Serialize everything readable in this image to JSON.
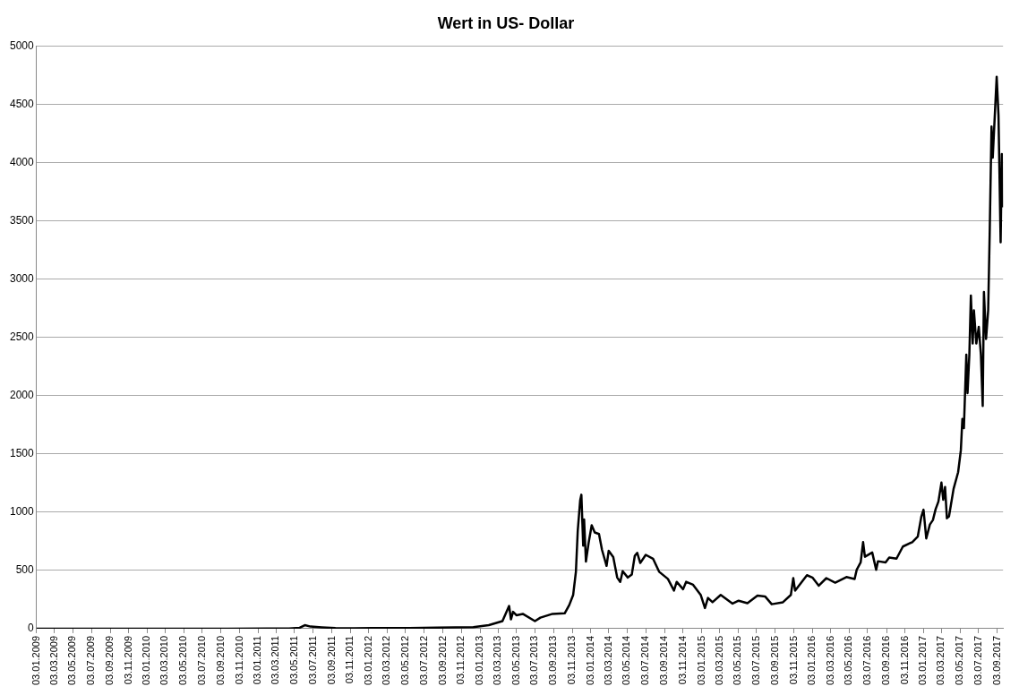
{
  "chart_data": {
    "type": "line",
    "title": "Wert in US- Dollar",
    "x": [
      "2009-01-03",
      "2009-07-01",
      "2010-01-01",
      "2010-07-17",
      "2011-02-01",
      "2011-04-15",
      "2011-05-20",
      "2011-06-06",
      "2011-06-25",
      "2011-08-01",
      "2011-09-15",
      "2011-11-15",
      "2012-01-15",
      "2012-03-15",
      "2012-05-15",
      "2012-08-15",
      "2012-10-15",
      "2012-12-12",
      "2013-02-01",
      "2013-03-18",
      "2013-04-09",
      "2013-04-15",
      "2013-04-22",
      "2013-05-03",
      "2013-05-24",
      "2013-07-03",
      "2013-07-21",
      "2013-08-30",
      "2013-10-09",
      "2013-10-24",
      "2013-11-06",
      "2013-11-15",
      "2013-11-21",
      "2013-11-29",
      "2013-12-03",
      "2013-12-09",
      "2013-12-12",
      "2013-12-18",
      "2013-12-27",
      "2014-01-06",
      "2014-01-16",
      "2014-01-30",
      "2014-02-09",
      "2014-02-24",
      "2014-03-03",
      "2014-03-18",
      "2014-03-31",
      "2014-04-10",
      "2014-04-18",
      "2014-05-05",
      "2014-05-18",
      "2014-05-28",
      "2014-06-05",
      "2014-06-15",
      "2014-07-03",
      "2014-07-27",
      "2014-08-16",
      "2014-09-14",
      "2014-10-04",
      "2014-10-13",
      "2014-11-03",
      "2014-11-13",
      "2014-12-06",
      "2014-12-31",
      "2015-01-14",
      "2015-01-24",
      "2015-02-08",
      "2015-03-07",
      "2015-04-15",
      "2015-05-05",
      "2015-06-03",
      "2015-07-06",
      "2015-07-31",
      "2015-08-22",
      "2015-09-28",
      "2015-10-24",
      "2015-11-01",
      "2015-11-07",
      "2015-12-16",
      "2016-01-03",
      "2016-01-24",
      "2016-02-18",
      "2016-03-18",
      "2016-04-24",
      "2016-05-21",
      "2016-05-28",
      "2016-06-10",
      "2016-06-18",
      "2016-06-24",
      "2016-07-18",
      "2016-07-31",
      "2016-08-06",
      "2016-08-31",
      "2016-09-12",
      "2016-10-06",
      "2016-10-27",
      "2016-11-27",
      "2016-12-15",
      "2016-12-27",
      "2017-01-03",
      "2017-01-12",
      "2017-01-24",
      "2017-02-03",
      "2017-02-12",
      "2017-02-21",
      "2017-03-03",
      "2017-03-09",
      "2017-03-15",
      "2017-03-21",
      "2017-03-28",
      "2017-04-12",
      "2017-04-27",
      "2017-05-06",
      "2017-05-11",
      "2017-05-16",
      "2017-05-24",
      "2017-05-28",
      "2017-06-03",
      "2017-06-08",
      "2017-06-14",
      "2017-06-18",
      "2017-06-26",
      "2017-07-04",
      "2017-07-11",
      "2017-07-17",
      "2017-07-21",
      "2017-07-28",
      "2017-08-04",
      "2017-08-09",
      "2017-08-15",
      "2017-08-19",
      "2017-09-01",
      "2017-09-07",
      "2017-09-14",
      "2017-09-18",
      "2017-09-21"
    ],
    "series": [
      {
        "color": "#000000",
        "values": [
          0,
          0,
          0,
          0,
          1,
          1,
          8,
          30,
          18,
          12,
          6,
          3,
          6,
          5,
          5,
          10,
          12,
          13,
          30,
          65,
          195,
          80,
          145,
          115,
          127,
          65,
          95,
          127,
          132,
          202,
          290,
          489,
          838,
          1100,
          1150,
          713,
          938,
          576,
          739,
          888,
          826,
          813,
          676,
          539,
          669,
          614,
          439,
          402,
          494,
          439,
          464,
          626,
          651,
          564,
          634,
          601,
          489,
          427,
          327,
          402,
          339,
          402,
          377,
          290,
          177,
          264,
          227,
          290,
          215,
          240,
          219,
          284,
          277,
          210,
          227,
          290,
          434,
          327,
          459,
          439,
          369,
          434,
          395,
          443,
          427,
          506,
          569,
          743,
          617,
          654,
          506,
          579,
          569,
          610,
          601,
          705,
          743,
          790,
          964,
          1021,
          775,
          894,
          933,
          1027,
          1090,
          1254,
          1106,
          1216,
          948,
          964,
          1200,
          1343,
          1532,
          1801,
          1721,
          2353,
          2022,
          2353,
          2859,
          2448,
          2733,
          2448,
          2591,
          2353,
          1912,
          2891,
          2487,
          2733,
          3396,
          4311,
          4043,
          4738,
          4406,
          3317,
          4075,
          3617
        ]
      }
    ],
    "xlim": [
      "2009-01-03",
      "2017-09-22"
    ],
    "xticks": [
      {
        "value": "2009-01-03",
        "label": "03.01.2009"
      },
      {
        "value": "2009-03-03",
        "label": "03.03.2009"
      },
      {
        "value": "2009-05-03",
        "label": "03.05.2009"
      },
      {
        "value": "2009-07-03",
        "label": "03.07.2009"
      },
      {
        "value": "2009-09-03",
        "label": "03.09.2009"
      },
      {
        "value": "2009-11-03",
        "label": "03.11.2009"
      },
      {
        "value": "2010-01-03",
        "label": "03.01.2010"
      },
      {
        "value": "2010-03-03",
        "label": "03.03.2010"
      },
      {
        "value": "2010-05-03",
        "label": "03.05.2010"
      },
      {
        "value": "2010-07-03",
        "label": "03.07.2010"
      },
      {
        "value": "2010-09-03",
        "label": "03.09.2010"
      },
      {
        "value": "2010-11-03",
        "label": "03.11.2010"
      },
      {
        "value": "2011-01-03",
        "label": "03.01.2011"
      },
      {
        "value": "2011-03-03",
        "label": "03.03.2011"
      },
      {
        "value": "2011-05-03",
        "label": "03.05.2011"
      },
      {
        "value": "2011-07-03",
        "label": "03.07.2011"
      },
      {
        "value": "2011-09-03",
        "label": "03.09.2011"
      },
      {
        "value": "2011-11-03",
        "label": "03.11.2011"
      },
      {
        "value": "2012-01-03",
        "label": "03.01.2012"
      },
      {
        "value": "2012-03-03",
        "label": "03.03.2012"
      },
      {
        "value": "2012-05-03",
        "label": "03.05.2012"
      },
      {
        "value": "2012-07-03",
        "label": "03.07.2012"
      },
      {
        "value": "2012-09-03",
        "label": "03.09.2012"
      },
      {
        "value": "2012-11-03",
        "label": "03.11.2012"
      },
      {
        "value": "2013-01-03",
        "label": "03.01.2013"
      },
      {
        "value": "2013-03-03",
        "label": "03.03.2013"
      },
      {
        "value": "2013-05-03",
        "label": "03.05.2013"
      },
      {
        "value": "2013-07-03",
        "label": "03.07.2013"
      },
      {
        "value": "2013-09-03",
        "label": "03.09.2013"
      },
      {
        "value": "2013-11-03",
        "label": "03.11.2013"
      },
      {
        "value": "2014-01-03",
        "label": "03.01.2014"
      },
      {
        "value": "2014-03-03",
        "label": "03.03.2014"
      },
      {
        "value": "2014-05-03",
        "label": "03.05.2014"
      },
      {
        "value": "2014-07-03",
        "label": "03.07.2014"
      },
      {
        "value": "2014-09-03",
        "label": "03.09.2014"
      },
      {
        "value": "2014-11-03",
        "label": "03.11.2014"
      },
      {
        "value": "2015-01-03",
        "label": "03.01.2015"
      },
      {
        "value": "2015-03-03",
        "label": "03.03.2015"
      },
      {
        "value": "2015-05-03",
        "label": "03.05.2015"
      },
      {
        "value": "2015-07-03",
        "label": "03.07.2015"
      },
      {
        "value": "2015-09-03",
        "label": "03.09.2015"
      },
      {
        "value": "2015-11-03",
        "label": "03.11.2015"
      },
      {
        "value": "2016-01-03",
        "label": "03.01.2016"
      },
      {
        "value": "2016-03-03",
        "label": "03.03.2016"
      },
      {
        "value": "2016-05-03",
        "label": "03.05.2016"
      },
      {
        "value": "2016-07-03",
        "label": "03.07.2016"
      },
      {
        "value": "2016-09-03",
        "label": "03.09.2016"
      },
      {
        "value": "2016-11-03",
        "label": "03.11.2016"
      },
      {
        "value": "2017-01-03",
        "label": "03.01.2017"
      },
      {
        "value": "2017-03-03",
        "label": "03.03.2017"
      },
      {
        "value": "2017-05-03",
        "label": "03.05.2017"
      },
      {
        "value": "2017-07-03",
        "label": "03.07.2017"
      },
      {
        "value": "2017-09-03",
        "label": "03.09.2017"
      }
    ],
    "ylim": [
      0,
      5000
    ],
    "yticks": [
      0,
      500,
      1000,
      1500,
      2000,
      2500,
      3000,
      3500,
      4000,
      4500,
      5000
    ],
    "grid": "y",
    "legend": false,
    "marker": "none",
    "line_style": "solid"
  }
}
